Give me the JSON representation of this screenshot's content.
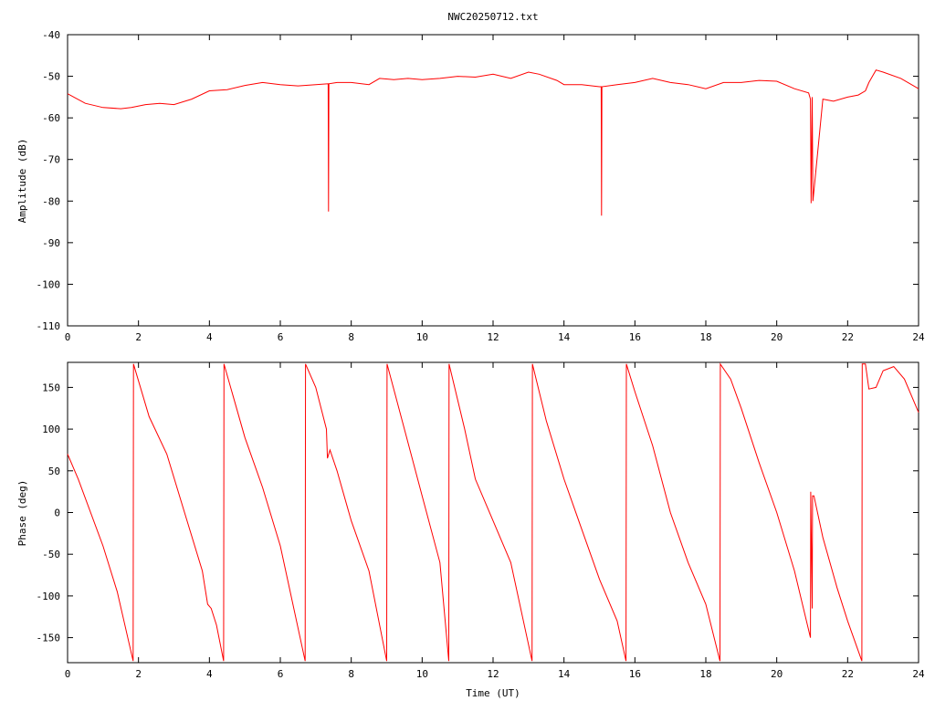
{
  "colors": {
    "series": "#ff0000",
    "axes": "#000000",
    "background": "#ffffff"
  },
  "chart_data": [
    {
      "type": "line",
      "title": "NWC20250712.txt",
      "xlabel": "",
      "ylabel": "Amplitude (dB)",
      "xlim": [
        0,
        24
      ],
      "ylim": [
        -110,
        -40
      ],
      "grid": false,
      "legend": "none",
      "x_ticks": [
        "0",
        "2",
        "4",
        "6",
        "8",
        "10",
        "12",
        "14",
        "16",
        "18",
        "20",
        "22",
        "24"
      ],
      "y_ticks": [
        "-40",
        "-50",
        "-60",
        "-70",
        "-80",
        "-90",
        "-100",
        "-110"
      ],
      "series": [
        {
          "x": [
            0,
            0.5,
            1.0,
            1.5,
            1.8,
            2.2,
            2.6,
            3.0,
            3.5,
            4.0,
            4.5,
            5.0,
            5.5,
            6.0,
            6.5,
            7.0,
            7.35,
            7.36,
            7.37,
            7.6,
            8.0,
            8.5,
            8.8,
            9.2,
            9.6,
            10.0,
            10.5,
            11.0,
            11.5,
            12.0,
            12.5,
            13.0,
            13.3,
            13.8,
            14.0,
            14.5,
            15.0,
            15.05,
            15.06,
            15.07,
            15.5,
            16.0,
            16.5,
            17.0,
            17.5,
            18.0,
            18.5,
            19.0,
            19.5,
            20.0,
            20.5,
            20.9,
            20.95,
            20.97,
            21.0,
            21.02,
            21.3,
            21.6,
            22.0,
            22.3,
            22.5,
            22.6,
            22.8,
            23.0,
            23.5,
            24.0
          ],
          "y": [
            -54.2,
            -56.5,
            -57.5,
            -57.8,
            -57.5,
            -56.8,
            -56.5,
            -56.8,
            -55.5,
            -53.5,
            -53.2,
            -52.2,
            -51.5,
            -52.0,
            -52.3,
            -52.0,
            -51.8,
            -82.5,
            -51.8,
            -51.5,
            -51.5,
            -52.0,
            -50.5,
            -50.8,
            -50.5,
            -50.8,
            -50.5,
            -50.0,
            -50.2,
            -49.5,
            -50.5,
            -49.0,
            -49.5,
            -51.0,
            -52.0,
            -52.0,
            -52.5,
            -52.5,
            -83.5,
            -52.5,
            -52.0,
            -51.5,
            -50.5,
            -51.5,
            -52.0,
            -53.0,
            -51.5,
            -51.5,
            -51.0,
            -51.2,
            -53.0,
            -54.0,
            -55.5,
            -80.5,
            -55.0,
            -80.0,
            -55.5,
            -56.0,
            -55.0,
            -54.5,
            -53.5,
            -51.5,
            -48.5,
            -49.0,
            -50.5,
            -53.0
          ]
        }
      ]
    },
    {
      "type": "line",
      "title": "",
      "xlabel": "Time (UT)",
      "ylabel": "Phase (deg)",
      "xlim": [
        0,
        24
      ],
      "ylim": [
        -180,
        180
      ],
      "grid": false,
      "legend": "none",
      "x_ticks": [
        "0",
        "2",
        "4",
        "6",
        "8",
        "10",
        "12",
        "14",
        "16",
        "18",
        "20",
        "22",
        "24"
      ],
      "y_ticks": [
        "150",
        "100",
        "50",
        "0",
        "-50",
        "-100",
        "-150"
      ],
      "series": [
        {
          "x": [
            0,
            0.3,
            1.0,
            1.4,
            1.85,
            1.86,
            2.3,
            2.8,
            3.3,
            3.8,
            3.95,
            4.05,
            4.2,
            4.4,
            4.41,
            5.0,
            5.5,
            6.0,
            6.7,
            6.71,
            7.0,
            7.3,
            7.33,
            7.4,
            7.6,
            8.0,
            8.5,
            9.0,
            9.01,
            9.5,
            10.0,
            10.5,
            10.75,
            10.76,
            11.2,
            11.5,
            12.0,
            12.5,
            13.1,
            13.11,
            13.5,
            14.0,
            14.5,
            15.0,
            15.5,
            15.75,
            15.76,
            16.0,
            16.5,
            17.0,
            17.5,
            18.0,
            18.4,
            18.41,
            18.7,
            19.0,
            19.5,
            20.0,
            20.5,
            20.95,
            20.96,
            21.0,
            21.01,
            21.05,
            21.3,
            21.7,
            22.0,
            22.4,
            22.41,
            22.5,
            22.6,
            22.8,
            23.0,
            23.3,
            23.6,
            24.0
          ],
          "y": [
            70,
            40,
            -40,
            -95,
            -178,
            178,
            115,
            70,
            0,
            -70,
            -110,
            -115,
            -135,
            -178,
            178,
            90,
            30,
            -40,
            -178,
            178,
            150,
            100,
            65,
            75,
            50,
            -10,
            -70,
            -178,
            178,
            100,
            20,
            -60,
            -178,
            178,
            100,
            40,
            -10,
            -60,
            -178,
            178,
            110,
            40,
            -20,
            -80,
            -130,
            -178,
            178,
            145,
            80,
            0,
            -60,
            -110,
            -178,
            178,
            160,
            125,
            60,
            0,
            -70,
            -150,
            25,
            -115,
            20,
            20,
            -30,
            -90,
            -130,
            -178,
            178,
            178,
            148,
            150,
            170,
            175,
            160,
            120
          ]
        }
      ]
    }
  ]
}
